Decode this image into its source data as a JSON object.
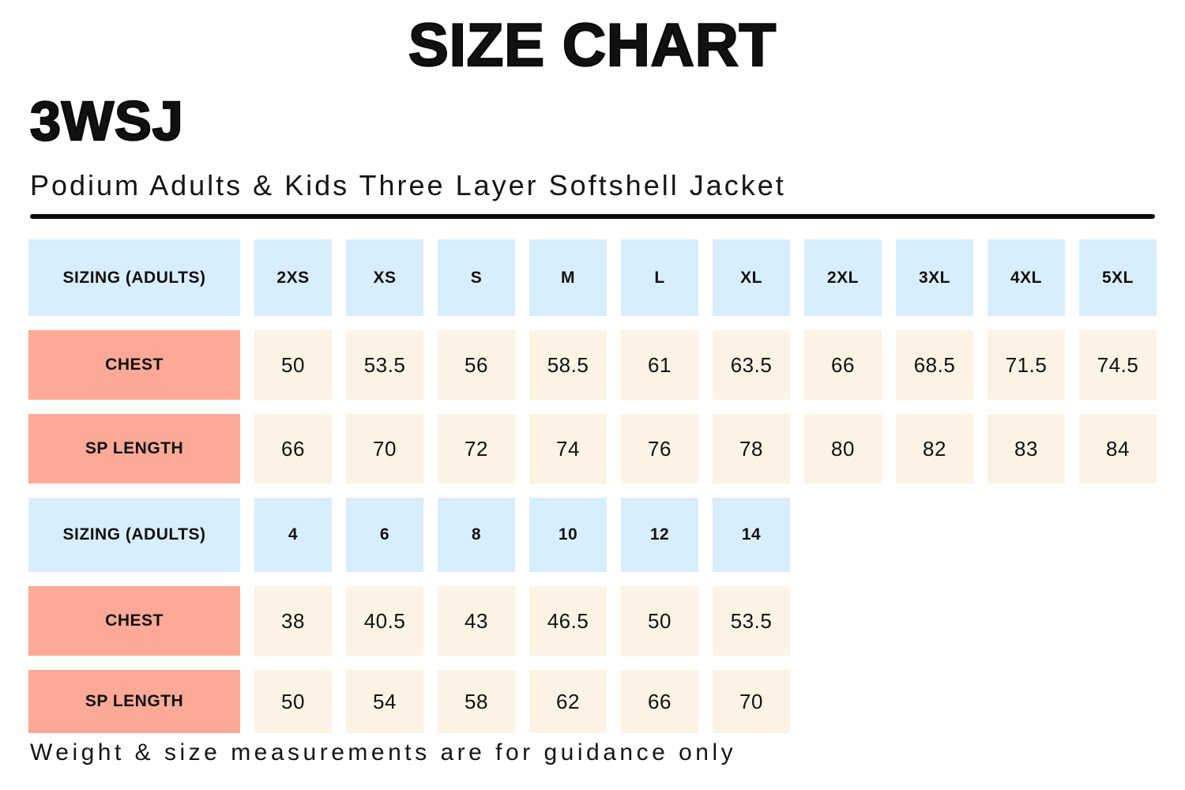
{
  "page": {
    "title": "SIZE CHART",
    "product_code": "3WSJ",
    "product_name": "Podium Adults & Kids Three Layer Softshell Jacket",
    "footnote": "Weight & size measurements are for guidance only"
  },
  "colors": {
    "header_cell": "#d9eefc",
    "label_cell": "#fcaa97",
    "value_cell": "#fdf3e4",
    "text": "#111111"
  },
  "size_table": {
    "adults": {
      "header_label": "SIZING (ADULTS)",
      "sizes": [
        "2XS",
        "XS",
        "S",
        "M",
        "L",
        "XL",
        "2XL",
        "3XL",
        "4XL",
        "5XL"
      ],
      "rows": [
        {
          "label": "CHEST",
          "values": [
            "50",
            "53.5",
            "56",
            "58.5",
            "61",
            "63.5",
            "66",
            "68.5",
            "71.5",
            "74.5"
          ]
        },
        {
          "label": "SP LENGTH",
          "values": [
            "66",
            "70",
            "72",
            "74",
            "76",
            "78",
            "80",
            "82",
            "83",
            "84"
          ]
        }
      ]
    },
    "kids": {
      "header_label": "SIZING (ADULTS)",
      "sizes": [
        "4",
        "6",
        "8",
        "10",
        "12",
        "14"
      ],
      "rows": [
        {
          "label": "CHEST",
          "values": [
            "38",
            "40.5",
            "43",
            "46.5",
            "50",
            "53.5"
          ]
        },
        {
          "label": "SP LENGTH",
          "values": [
            "50",
            "54",
            "58",
            "62",
            "66",
            "70"
          ]
        }
      ]
    }
  }
}
